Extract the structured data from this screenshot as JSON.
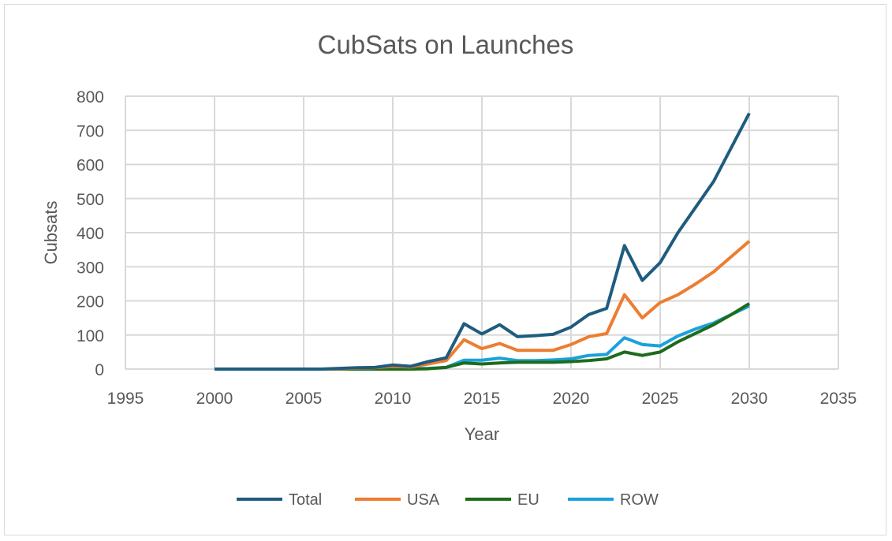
{
  "chart_data": {
    "type": "line",
    "title": "CubSats on Launches",
    "xlabel": "Year",
    "ylabel": "Cubsats",
    "xlim": [
      1995,
      2035
    ],
    "ylim": [
      0,
      800
    ],
    "xticks": [
      1995,
      2000,
      2005,
      2010,
      2015,
      2020,
      2025,
      2030,
      2035
    ],
    "yticks": [
      0,
      100,
      200,
      300,
      400,
      500,
      600,
      700,
      800
    ],
    "grid": true,
    "legend_position": "bottom",
    "x": [
      2000,
      2001,
      2002,
      2003,
      2004,
      2005,
      2006,
      2007,
      2008,
      2009,
      2010,
      2011,
      2012,
      2013,
      2014,
      2015,
      2016,
      2017,
      2018,
      2019,
      2020,
      2021,
      2022,
      2023,
      2024,
      2025,
      2026,
      2027,
      2028,
      2029,
      2030
    ],
    "series": [
      {
        "name": "Total",
        "color": "#1f5c7e",
        "values": [
          0,
          0,
          0,
          0,
          0,
          0,
          0,
          2,
          4,
          5,
          12,
          8,
          22,
          33,
          133,
          103,
          130,
          95,
          98,
          102,
          123,
          160,
          178,
          362,
          260,
          312,
          400,
          475,
          550,
          650,
          750
        ]
      },
      {
        "name": "USA",
        "color": "#ed7d31",
        "values": [
          0,
          0,
          0,
          0,
          0,
          0,
          0,
          1,
          3,
          4,
          8,
          6,
          15,
          25,
          86,
          60,
          75,
          55,
          55,
          55,
          72,
          95,
          104,
          218,
          150,
          195,
          218,
          250,
          285,
          330,
          375
        ]
      },
      {
        "name": "EU",
        "color": "#1e6b1e",
        "values": [
          0,
          0,
          0,
          0,
          0,
          0,
          0,
          0,
          0,
          0,
          0,
          0,
          1,
          5,
          18,
          15,
          18,
          20,
          20,
          20,
          22,
          25,
          30,
          50,
          40,
          50,
          80,
          105,
          130,
          160,
          192
        ]
      },
      {
        "name": "ROW",
        "color": "#1ba1dc",
        "values": [
          0,
          0,
          0,
          0,
          0,
          0,
          0,
          0,
          0,
          0,
          1,
          1,
          2,
          5,
          26,
          26,
          32,
          25,
          25,
          27,
          30,
          40,
          43,
          92,
          72,
          68,
          97,
          118,
          135,
          160,
          185
        ]
      }
    ]
  }
}
